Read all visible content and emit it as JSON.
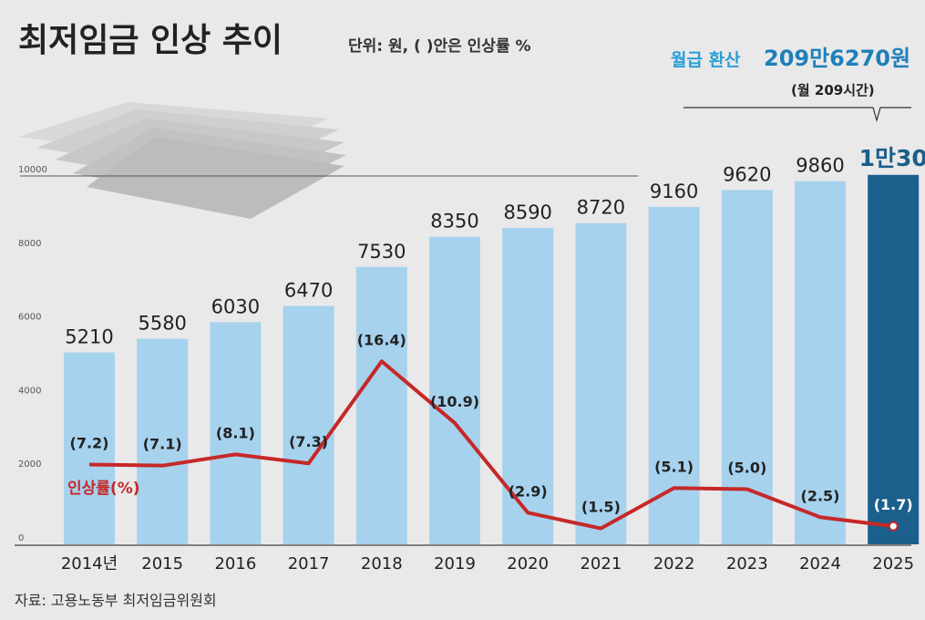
{
  "chart_data": {
    "type": "bar",
    "title": "최저임금 인상 추이",
    "unit_note": "단위: 원, ( )안은 인상률 %",
    "monthly_label": "월급 환산",
    "monthly_value": "209만6270원",
    "monthly_hours": "(월 209시간)",
    "categories": [
      "2014년",
      "2015",
      "2016",
      "2017",
      "2018",
      "2019",
      "2020",
      "2021",
      "2022",
      "2023",
      "2024",
      "2025"
    ],
    "bar_values": [
      5210,
      5580,
      6030,
      6470,
      7530,
      8350,
      8590,
      8720,
      9160,
      9620,
      9860,
      10030
    ],
    "bar_labels": [
      "5210",
      "5580",
      "6030",
      "6470",
      "7530",
      "8350",
      "8590",
      "8720",
      "9160",
      "9620",
      "9860",
      "1만30"
    ],
    "rate_values": [
      7.2,
      7.1,
      8.1,
      7.3,
      16.4,
      10.9,
      2.9,
      1.5,
      5.1,
      5.0,
      2.5,
      1.7
    ],
    "rate_labels": [
      "(7.2)",
      "(7.1)",
      "(8.1)",
      "(7.3)",
      "(16.4)",
      "(10.9)",
      "(2.9)",
      "(1.5)",
      "(5.1)",
      "(5.0)",
      "(2.5)",
      "(1.7)"
    ],
    "rate_series_name": "인상률(%)",
    "yticks": [
      "0",
      "2000",
      "4000",
      "6000",
      "8000",
      "10000"
    ],
    "ylim": [
      0,
      10000
    ],
    "grid": false,
    "source": "자료: 고용노동부 최저임금위원회",
    "colors": {
      "bar": "#a6d2ee",
      "bar_last": "#1b5f8c",
      "line": "#c62828",
      "accent": "#2a9fd6"
    }
  }
}
